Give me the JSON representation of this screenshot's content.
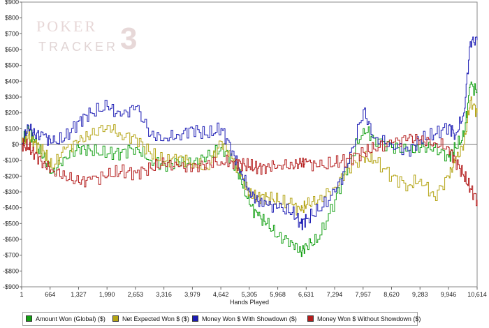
{
  "watermark": {
    "line1": "POKER",
    "line2": "TRACKER",
    "line3": "3"
  },
  "chart_data": {
    "type": "line",
    "xlabel": "Hands Played",
    "ylabel": "",
    "xlim": [
      1,
      10614
    ],
    "ylim": [
      -900,
      900
    ],
    "xticks": [
      "1",
      "664",
      "1,327",
      "1,990",
      "2,653",
      "3,316",
      "3,979",
      "4,642",
      "5,305",
      "5,968",
      "6,631",
      "7,294",
      "7,957",
      "8,620",
      "9,283",
      "9,946",
      "10,614"
    ],
    "x_tick_values": [
      1,
      664,
      1327,
      1990,
      2653,
      3316,
      3979,
      4642,
      5305,
      5968,
      6631,
      7294,
      7957,
      8620,
      9283,
      9946,
      10614
    ],
    "yticks": [
      "-$900",
      "-$800",
      "-$700",
      "-$600",
      "-$500",
      "-$400",
      "-$300",
      "-$200",
      "-$100",
      "$0",
      "$100",
      "$200",
      "$300",
      "$400",
      "$500",
      "$600",
      "$700",
      "$800",
      "$900"
    ],
    "y_tick_values": [
      -900,
      -800,
      -700,
      -600,
      -500,
      -400,
      -300,
      -200,
      -100,
      0,
      100,
      200,
      300,
      400,
      500,
      600,
      700,
      800,
      900
    ],
    "grid": false,
    "legend_position": "bottom",
    "series": [
      {
        "name": "Amount Won (Global) ($)",
        "color": "#14a014",
        "x": [
          1,
          150,
          300,
          500,
          700,
          1000,
          1327,
          1600,
          1990,
          2300,
          2653,
          3000,
          3316,
          3650,
          3979,
          4300,
          4642,
          4900,
          5100,
          5305,
          5500,
          5700,
          5968,
          6300,
          6500,
          6631,
          6900,
          7294,
          7600,
          7957,
          8200,
          8620,
          9000,
          9283,
          9600,
          9946,
          10100,
          10300,
          10450,
          10614
        ],
        "values": [
          0,
          100,
          20,
          -80,
          -180,
          -80,
          -20,
          -40,
          -60,
          -50,
          -20,
          -100,
          -130,
          -110,
          -120,
          -80,
          -20,
          -90,
          -220,
          -380,
          -450,
          -500,
          -580,
          -620,
          -680,
          -640,
          -600,
          -350,
          -120,
          100,
          40,
          -20,
          -40,
          -20,
          -20,
          -80,
          -20,
          50,
          380,
          330
        ]
      },
      {
        "name": "Net Expected Won $ ($)",
        "color": "#b4a414",
        "x": [
          1,
          150,
          300,
          500,
          700,
          1000,
          1327,
          1600,
          1990,
          2300,
          2653,
          3000,
          3316,
          3650,
          3979,
          4300,
          4642,
          4900,
          5100,
          5305,
          5500,
          5700,
          5968,
          6300,
          6500,
          6631,
          6900,
          7294,
          7600,
          7957,
          8200,
          8620,
          9000,
          9283,
          9600,
          9946,
          10100,
          10300,
          10450,
          10614
        ],
        "values": [
          0,
          60,
          10,
          -40,
          -150,
          -30,
          20,
          60,
          120,
          60,
          40,
          -60,
          -110,
          -80,
          -120,
          -150,
          20,
          -90,
          -200,
          -320,
          -330,
          -330,
          -360,
          -380,
          -420,
          -380,
          -350,
          -270,
          -150,
          -80,
          -100,
          -200,
          -260,
          -220,
          -330,
          -200,
          -100,
          0,
          280,
          200
        ]
      },
      {
        "name": "Money Won $ With Showdown ($)",
        "color": "#1c1cb4",
        "x": [
          1,
          150,
          300,
          500,
          700,
          1000,
          1327,
          1600,
          1990,
          2300,
          2653,
          3000,
          3316,
          3650,
          3979,
          4300,
          4642,
          4900,
          5100,
          5305,
          5500,
          5700,
          5968,
          6300,
          6500,
          6631,
          6900,
          7294,
          7600,
          7957,
          8200,
          8620,
          9000,
          9283,
          9600,
          9946,
          10100,
          10300,
          10450,
          10614
        ],
        "values": [
          0,
          120,
          60,
          60,
          10,
          40,
          150,
          200,
          240,
          180,
          240,
          60,
          40,
          60,
          100,
          60,
          100,
          -40,
          -170,
          -300,
          -360,
          -380,
          -400,
          -430,
          -500,
          -470,
          -420,
          -300,
          -120,
          220,
          40,
          0,
          -40,
          30,
          60,
          120,
          60,
          200,
          650,
          660
        ]
      },
      {
        "name": "Money Won $ Without Showdown ($)",
        "color": "#b41c1c",
        "x": [
          1,
          150,
          300,
          500,
          700,
          1000,
          1327,
          1600,
          1990,
          2300,
          2653,
          3000,
          3316,
          3650,
          3979,
          4300,
          4642,
          4900,
          5100,
          5305,
          5500,
          5700,
          5968,
          6300,
          6500,
          6631,
          6900,
          7294,
          7600,
          7957,
          8200,
          8620,
          9000,
          9283,
          9600,
          9946,
          10100,
          10300,
          10450,
          10614
        ],
        "values": [
          0,
          -20,
          -60,
          -120,
          -160,
          -200,
          -240,
          -220,
          -200,
          -170,
          -180,
          -150,
          -120,
          -140,
          -150,
          -120,
          -110,
          -110,
          -120,
          -140,
          -150,
          -140,
          -130,
          -130,
          -120,
          -110,
          -140,
          -120,
          -90,
          -50,
          -30,
          10,
          40,
          30,
          10,
          -20,
          -100,
          -200,
          -280,
          -350
        ]
      }
    ]
  },
  "legend": {
    "items": [
      {
        "label": "Amount Won (Global) ($)",
        "color": "#14a014"
      },
      {
        "label": "Net Expected Won $ ($)",
        "color": "#b4a414"
      },
      {
        "label": "Money Won $ With Showdown ($)",
        "color": "#1c1cb4"
      },
      {
        "label": "Money Won $ Without Showdown ($)",
        "color": "#b41c1c"
      }
    ]
  }
}
